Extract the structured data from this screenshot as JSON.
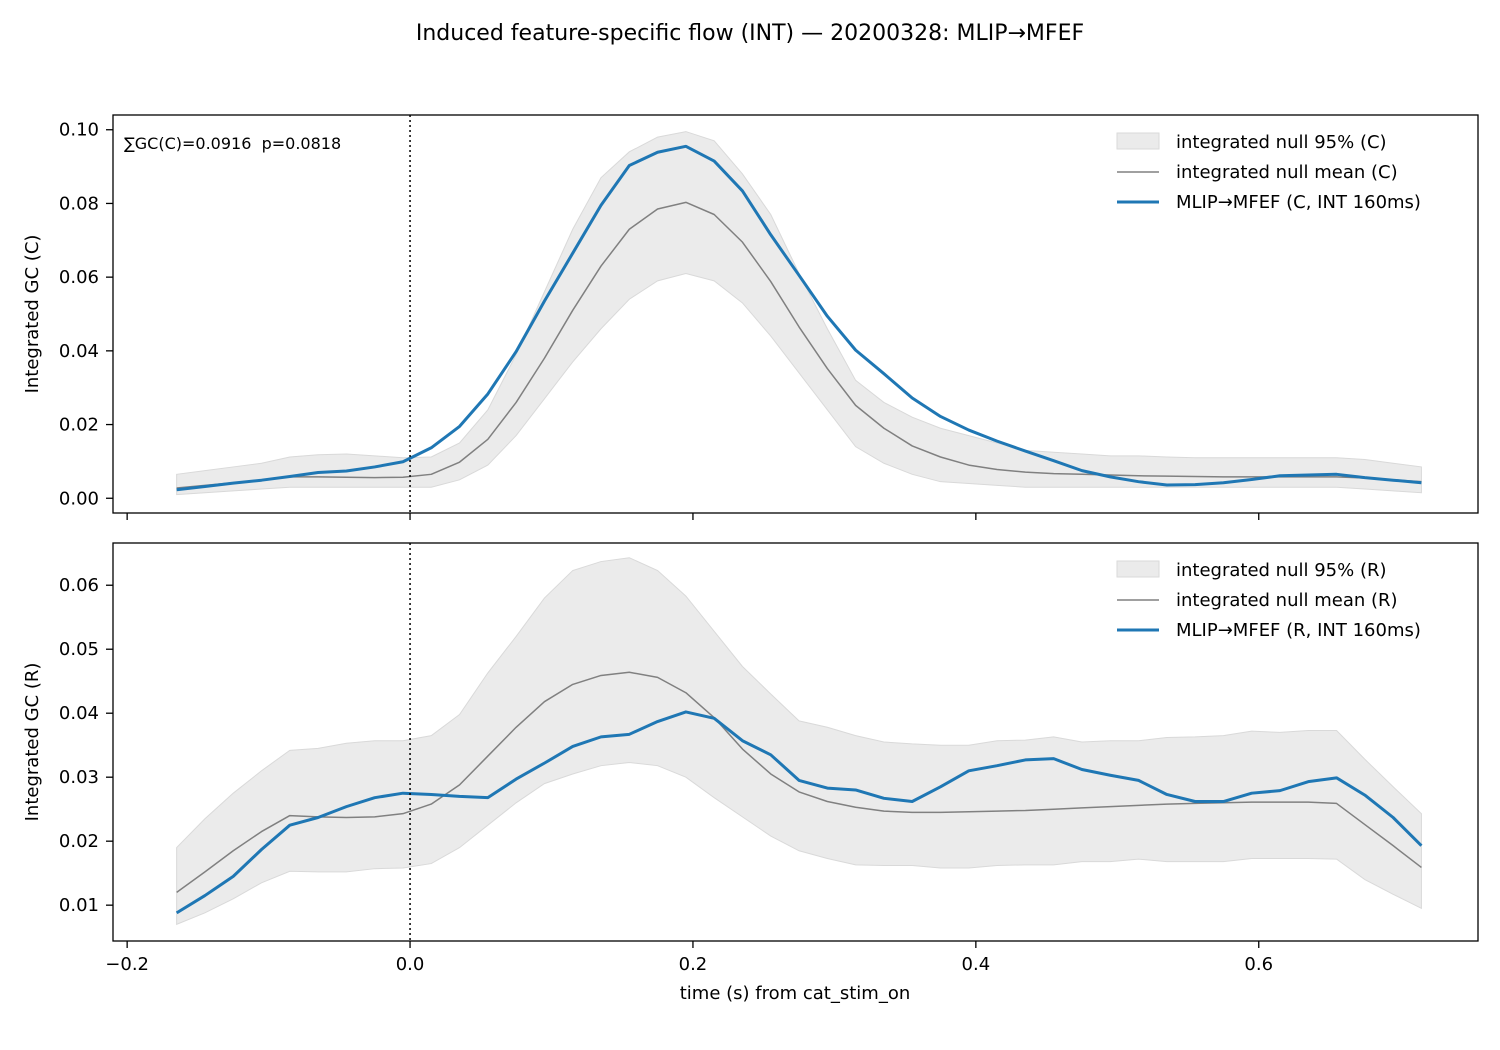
{
  "figure_title": "Induced feature-specific flow (INT) — 20200328: MLIP→MFEF",
  "colors": {
    "main_line": "#1f77b4",
    "null_mean": "#808080",
    "null_band_fill": "#ebebeb",
    "null_band_edge": "#d9d9d9",
    "axes": "#000000"
  },
  "chart_data": [
    {
      "type": "line",
      "panel": "top",
      "ylabel": "Integrated GC (C)",
      "xlabel": "",
      "xlim": [
        -0.21,
        0.755
      ],
      "ylim": [
        -0.004,
        0.104
      ],
      "x_ticks": [
        -0.2,
        0.0,
        0.2,
        0.4,
        0.6
      ],
      "x_tick_labels": [
        "",
        "",
        "",
        "",
        ""
      ],
      "y_ticks": [
        0.0,
        0.02,
        0.04,
        0.06,
        0.08,
        0.1
      ],
      "y_tick_labels": [
        "0.00",
        "0.02",
        "0.04",
        "0.06",
        "0.08",
        "0.10"
      ],
      "annotation": "∑GC(C)=0.0916  p=0.0818",
      "vline_x": 0.0,
      "legend_position": "top-right",
      "x": [
        -0.165,
        -0.145,
        -0.125,
        -0.105,
        -0.085,
        -0.065,
        -0.045,
        -0.025,
        -0.005,
        0.015,
        0.035,
        0.055,
        0.075,
        0.095,
        0.115,
        0.135,
        0.155,
        0.175,
        0.195,
        0.215,
        0.235,
        0.255,
        0.275,
        0.295,
        0.315,
        0.335,
        0.355,
        0.375,
        0.395,
        0.415,
        0.435,
        0.455,
        0.475,
        0.495,
        0.515,
        0.535,
        0.555,
        0.575,
        0.595,
        0.615,
        0.635,
        0.655,
        0.675,
        0.695,
        0.715
      ],
      "series": [
        {
          "name": "integrated null 95% (C)",
          "kind": "band",
          "lower": [
            0.001,
            0.0015,
            0.002,
            0.0025,
            0.003,
            0.003,
            0.003,
            0.003,
            0.003,
            0.003,
            0.005,
            0.009,
            0.017,
            0.027,
            0.037,
            0.046,
            0.054,
            0.059,
            0.061,
            0.059,
            0.053,
            0.044,
            0.034,
            0.024,
            0.014,
            0.0095,
            0.0065,
            0.0045,
            0.004,
            0.0035,
            0.003,
            0.003,
            0.003,
            0.003,
            0.003,
            0.003,
            0.003,
            0.003,
            0.003,
            0.003,
            0.003,
            0.003,
            0.0025,
            0.002,
            0.0015
          ],
          "upper": [
            0.0065,
            0.0075,
            0.0085,
            0.0095,
            0.0112,
            0.0118,
            0.012,
            0.0115,
            0.011,
            0.0112,
            0.015,
            0.024,
            0.039,
            0.056,
            0.073,
            0.087,
            0.094,
            0.098,
            0.0995,
            0.097,
            0.088,
            0.077,
            0.061,
            0.046,
            0.032,
            0.026,
            0.022,
            0.019,
            0.017,
            0.015,
            0.013,
            0.0125,
            0.012,
            0.0115,
            0.0115,
            0.0112,
            0.011,
            0.011,
            0.011,
            0.011,
            0.011,
            0.011,
            0.0105,
            0.0095,
            0.0085
          ]
        },
        {
          "name": "integrated null mean (C)",
          "kind": "line",
          "values": [
            0.0028,
            0.0035,
            0.0042,
            0.005,
            0.0058,
            0.0058,
            0.0057,
            0.0056,
            0.0057,
            0.0065,
            0.0098,
            0.016,
            0.026,
            0.038,
            0.051,
            0.063,
            0.073,
            0.0785,
            0.0803,
            0.077,
            0.0695,
            0.0588,
            0.0465,
            0.0352,
            0.0252,
            0.019,
            0.0142,
            0.0112,
            0.009,
            0.0078,
            0.0071,
            0.0067,
            0.0065,
            0.0063,
            0.0061,
            0.006,
            0.0059,
            0.0058,
            0.0058,
            0.0058,
            0.0058,
            0.0058,
            0.0055,
            0.005,
            0.0045
          ]
        },
        {
          "name": "MLIP→MFEF (C, INT 160ms)",
          "kind": "main",
          "values": [
            0.0023,
            0.0032,
            0.0041,
            0.0049,
            0.0059,
            0.007,
            0.0074,
            0.0085,
            0.0099,
            0.0137,
            0.0195,
            0.0283,
            0.0398,
            0.0535,
            0.0665,
            0.0795,
            0.0903,
            0.0939,
            0.0955,
            0.0915,
            0.0834,
            0.0715,
            0.0605,
            0.0494,
            0.0402,
            0.0338,
            0.0272,
            0.0222,
            0.0185,
            0.0155,
            0.0128,
            0.0102,
            0.0075,
            0.0058,
            0.0045,
            0.0036,
            0.0037,
            0.0042,
            0.0051,
            0.0061,
            0.0063,
            0.0065,
            0.0056,
            0.0049,
            0.0042
          ]
        }
      ]
    },
    {
      "type": "line",
      "panel": "bottom",
      "ylabel": "Integrated GC (R)",
      "xlabel": "time (s) from cat_stim_on",
      "xlim": [
        -0.21,
        0.755
      ],
      "ylim": [
        0.0044,
        0.0666
      ],
      "x_ticks": [
        -0.2,
        0.0,
        0.2,
        0.4,
        0.6
      ],
      "x_tick_labels": [
        "−0.2",
        "0.0",
        "0.2",
        "0.4",
        "0.6"
      ],
      "y_ticks": [
        0.01,
        0.02,
        0.03,
        0.04,
        0.05,
        0.06
      ],
      "y_tick_labels": [
        "0.01",
        "0.02",
        "0.03",
        "0.04",
        "0.05",
        "0.06"
      ],
      "annotation": "",
      "vline_x": 0.0,
      "legend_position": "top-right",
      "x": [
        -0.165,
        -0.145,
        -0.125,
        -0.105,
        -0.085,
        -0.065,
        -0.045,
        -0.025,
        -0.005,
        0.015,
        0.035,
        0.055,
        0.075,
        0.095,
        0.115,
        0.135,
        0.155,
        0.175,
        0.195,
        0.215,
        0.235,
        0.255,
        0.275,
        0.295,
        0.315,
        0.335,
        0.355,
        0.375,
        0.395,
        0.415,
        0.435,
        0.455,
        0.475,
        0.495,
        0.515,
        0.535,
        0.555,
        0.575,
        0.595,
        0.615,
        0.635,
        0.655,
        0.675,
        0.695,
        0.715
      ],
      "series": [
        {
          "name": "integrated null 95% (R)",
          "kind": "band",
          "lower": [
            0.007,
            0.0088,
            0.011,
            0.0135,
            0.0153,
            0.0152,
            0.0152,
            0.0157,
            0.0158,
            0.0165,
            0.019,
            0.0225,
            0.026,
            0.029,
            0.0305,
            0.0318,
            0.0323,
            0.0318,
            0.03,
            0.0268,
            0.0238,
            0.0208,
            0.0185,
            0.0173,
            0.0163,
            0.0162,
            0.0162,
            0.0158,
            0.0158,
            0.0162,
            0.0163,
            0.0163,
            0.0168,
            0.0168,
            0.0172,
            0.0168,
            0.0168,
            0.0168,
            0.0173,
            0.0173,
            0.0173,
            0.0172,
            0.014,
            0.0117,
            0.0095
          ],
          "upper": [
            0.019,
            0.0235,
            0.0275,
            0.031,
            0.0342,
            0.0345,
            0.0353,
            0.0357,
            0.0357,
            0.0365,
            0.0398,
            0.0463,
            0.052,
            0.058,
            0.0623,
            0.0637,
            0.0643,
            0.0623,
            0.0583,
            0.0528,
            0.0473,
            0.043,
            0.0388,
            0.0378,
            0.0365,
            0.0355,
            0.0352,
            0.035,
            0.035,
            0.0357,
            0.0358,
            0.0363,
            0.0355,
            0.0357,
            0.0357,
            0.0362,
            0.0363,
            0.0365,
            0.0372,
            0.037,
            0.0373,
            0.0373,
            0.0328,
            0.0285,
            0.0243
          ]
        },
        {
          "name": "integrated null mean (R)",
          "kind": "line",
          "values": [
            0.012,
            0.0152,
            0.0185,
            0.0215,
            0.024,
            0.0238,
            0.0237,
            0.0238,
            0.0243,
            0.0258,
            0.0288,
            0.0333,
            0.0378,
            0.0418,
            0.0445,
            0.0459,
            0.0464,
            0.0456,
            0.0432,
            0.0393,
            0.0344,
            0.0305,
            0.0277,
            0.0262,
            0.0253,
            0.0247,
            0.0245,
            0.0245,
            0.0246,
            0.0247,
            0.0248,
            0.025,
            0.0252,
            0.0254,
            0.0256,
            0.0258,
            0.0259,
            0.026,
            0.0261,
            0.0261,
            0.0261,
            0.0259,
            0.0226,
            0.0193,
            0.0159
          ]
        },
        {
          "name": "MLIP→MFEF (R, INT 160ms)",
          "kind": "main",
          "values": [
            0.0088,
            0.0115,
            0.0145,
            0.0187,
            0.0225,
            0.0237,
            0.0254,
            0.0268,
            0.0275,
            0.0273,
            0.027,
            0.0268,
            0.0297,
            0.0322,
            0.0348,
            0.0363,
            0.0367,
            0.0387,
            0.0402,
            0.0392,
            0.0357,
            0.0335,
            0.0295,
            0.0283,
            0.028,
            0.0267,
            0.0262,
            0.0285,
            0.031,
            0.0318,
            0.0327,
            0.0329,
            0.0312,
            0.0303,
            0.0295,
            0.0273,
            0.0262,
            0.0262,
            0.0275,
            0.0279,
            0.0293,
            0.0299,
            0.0272,
            0.0237,
            0.0193
          ]
        }
      ]
    }
  ]
}
